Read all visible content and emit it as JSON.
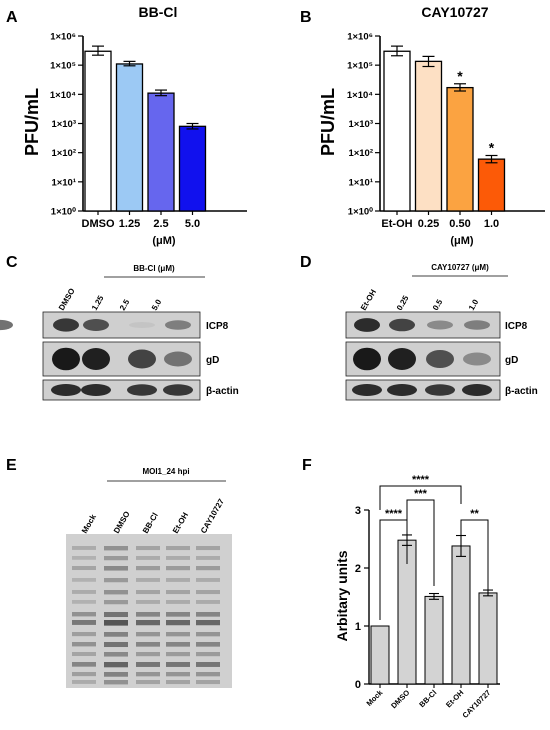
{
  "panels": {
    "A": {
      "letter": "A",
      "title": "BB-Cl",
      "ylabel": "PFU/mL",
      "xunit": "(μM)"
    },
    "B": {
      "letter": "B",
      "title": "CAY10727",
      "ylabel": "PFU/mL",
      "xunit": "(μM)",
      "sig": [
        "*",
        "*"
      ]
    },
    "C": {
      "letter": "C",
      "group_label": "BB-Cl (μM)",
      "lanes": [
        "DMSO",
        "1.25",
        "2.5",
        "5.0"
      ],
      "rows": [
        "ICP8",
        "gD",
        "β-actin"
      ]
    },
    "D": {
      "letter": "D",
      "group_label": "CAY10727 (μM)",
      "lanes": [
        "Et-OH",
        "0.25",
        "0.5",
        "1.0"
      ],
      "rows": [
        "ICP8",
        "gD",
        "β-actin"
      ]
    },
    "E": {
      "letter": "E",
      "group_label": "MOI1_24 hpi",
      "lanes": [
        "Mock",
        "DMSO",
        "BB-Cl",
        "Et-OH",
        "CAY10727"
      ]
    },
    "F": {
      "letter": "F",
      "ylabel": "Arbitary units",
      "sig": [
        "****",
        "****",
        "***",
        "**"
      ]
    }
  },
  "chart_data": [
    {
      "type": "bar",
      "title": "BB-Cl",
      "ylabel": "PFU/mL",
      "xlabel": "(μM)",
      "yscale": "log",
      "ylim": [
        1,
        1000000
      ],
      "yticks": [
        "1×10⁰",
        "1×10¹",
        "1×10²",
        "1×10³",
        "1×10⁴",
        "1×10⁵",
        "1×10⁶"
      ],
      "categories": [
        "DMSO",
        "1.25",
        "2.5",
        "5.0"
      ],
      "values": [
        300000,
        110000,
        11000,
        800
      ],
      "err_upper": [
        450000,
        135000,
        14000,
        1000
      ],
      "err_lower": [
        220000,
        95000,
        9000,
        650
      ],
      "colors": [
        "#ffffff",
        "#9cc9f4",
        "#6666ee",
        "#1111ee"
      ]
    },
    {
      "type": "bar",
      "title": "CAY10727",
      "ylabel": "PFU/mL",
      "xlabel": "(μM)",
      "yscale": "log",
      "ylim": [
        1,
        1000000
      ],
      "yticks": [
        "1×10⁰",
        "1×10¹",
        "1×10²",
        "1×10³",
        "1×10⁴",
        "1×10⁵",
        "1×10⁶"
      ],
      "categories": [
        "Et-OH",
        "0.25",
        "0.50",
        "1.0"
      ],
      "values": [
        300000,
        135000,
        17000,
        60
      ],
      "err_upper": [
        450000,
        200000,
        23000,
        80
      ],
      "err_lower": [
        210000,
        90000,
        13000,
        45
      ],
      "significance": [
        "",
        "",
        "*",
        "*"
      ],
      "colors": [
        "#ffffff",
        "#fde0c4",
        "#fba341",
        "#fc5a07"
      ]
    },
    {
      "type": "bar",
      "ylabel": "Arbitary units",
      "ylim": [
        0,
        3
      ],
      "yticks": [
        0,
        1,
        2,
        3
      ],
      "categories": [
        "Mock",
        "DMSO",
        "BB-Cl",
        "Et-OH",
        "CAY10727"
      ],
      "values": [
        1.0,
        2.48,
        1.51,
        2.38,
        1.57
      ],
      "errors": [
        0,
        0.09,
        0.05,
        0.18,
        0.05
      ],
      "comparisons": [
        {
          "from": "Mock",
          "to": "DMSO",
          "label": "****"
        },
        {
          "from": "Mock",
          "to": "Et-OH",
          "label": "****"
        },
        {
          "from": "DMSO",
          "to": "BB-Cl",
          "label": "***"
        },
        {
          "from": "Et-OH",
          "to": "CAY10727",
          "label": "**"
        }
      ],
      "bar_color": "#d3d3d3"
    }
  ]
}
